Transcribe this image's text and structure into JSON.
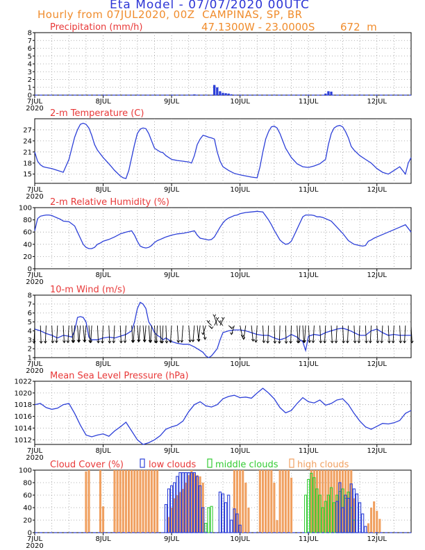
{
  "header": {
    "title": "Eta Model - 07/07/2020 00UTC",
    "subtitle": "Hourly from 07JUL2020, 00Z  CAMPINAS, SP, BR",
    "coords": "47.1300W - 23.0000S",
    "elevation": "672  m"
  },
  "x_axis": {
    "hours_total": 132,
    "day_ticks": [
      {
        "hour": 0,
        "label": "7JUL",
        "year": "2020"
      },
      {
        "hour": 24,
        "label": "8JUL"
      },
      {
        "hour": 48,
        "label": "9JUL"
      },
      {
        "hour": 72,
        "label": "10JUL"
      },
      {
        "hour": 96,
        "label": "11JUL"
      },
      {
        "hour": 120,
        "label": "12JUL"
      }
    ]
  },
  "legend": {
    "low": "low clouds",
    "mid": "middle clouds",
    "high": "high clouds"
  },
  "colors": {
    "line": "#2c3fd8",
    "title": "#e83838",
    "orange": "#f0a060",
    "green": "#33cc33",
    "blue": "#2c3fd8"
  },
  "chart_data": [
    {
      "type": "bar",
      "title": "Precipitation (mm/h)",
      "ylim": [
        0,
        8
      ],
      "yticks": [
        "0",
        "1",
        "2",
        "3",
        "4",
        "5",
        "6",
        "7",
        "8"
      ],
      "x": [
        56,
        63,
        64,
        65,
        66,
        67,
        68,
        69,
        102,
        103,
        104
      ],
      "values": [
        0.1,
        1.3,
        1.0,
        0.5,
        0.3,
        0.25,
        0.2,
        0.1,
        0.2,
        0.5,
        0.45
      ]
    },
    {
      "type": "line",
      "title": "2-m Temperature (C)",
      "ylim": [
        12.5,
        30
      ],
      "yticks": [
        "15",
        "18",
        "21",
        "24",
        "27"
      ],
      "x": [
        0,
        1,
        2,
        3,
        4,
        6,
        8,
        10,
        12,
        13,
        14,
        15,
        16,
        17,
        18,
        19,
        20,
        21,
        22,
        24,
        26,
        28,
        30,
        31,
        32,
        33,
        34,
        35,
        36,
        37,
        38,
        39,
        40,
        41,
        42,
        44,
        45,
        46,
        48,
        50,
        52,
        54,
        55,
        56,
        57,
        58,
        59,
        60,
        61,
        62,
        63,
        64,
        65,
        66,
        68,
        70,
        72,
        74,
        76,
        78,
        79,
        80,
        81,
        82,
        83,
        84,
        85,
        86,
        87,
        88,
        90,
        92,
        94,
        96,
        98,
        100,
        102,
        103,
        104,
        105,
        106,
        107,
        108,
        109,
        110,
        111,
        112,
        114,
        116,
        118,
        120,
        122,
        124,
        126,
        128,
        130,
        131,
        132
      ],
      "values": [
        21,
        18.5,
        17.5,
        17,
        16.8,
        16.5,
        16,
        15.5,
        19,
        22,
        25,
        27,
        28.5,
        28.8,
        28.5,
        27.5,
        25.5,
        23,
        21.5,
        19.5,
        17.8,
        16,
        14.5,
        14,
        13.8,
        16,
        19.5,
        23,
        26,
        27.2,
        27.5,
        27.3,
        26,
        24,
        22,
        21,
        20.8,
        20,
        19,
        18.7,
        18.5,
        18.3,
        18,
        20,
        23,
        24.5,
        25.5,
        25.3,
        25,
        24.8,
        24.5,
        21,
        18.5,
        17,
        16,
        15.2,
        14.8,
        14.5,
        14.2,
        14,
        17,
        21,
        24.5,
        26.5,
        27.8,
        28,
        27.5,
        26,
        24,
        22,
        19.5,
        17.8,
        17,
        16.8,
        17.2,
        17.8,
        19,
        23,
        26,
        27.5,
        28,
        28.2,
        27.8,
        26.5,
        24.8,
        22.5,
        21.5,
        20,
        19,
        18,
        16.5,
        15.5,
        15,
        16,
        17,
        15,
        18,
        19.5
      ]
    },
    {
      "type": "line",
      "title": "2-m Relative Humidity (%)",
      "ylim": [
        0,
        100
      ],
      "yticks": [
        "0",
        "20",
        "40",
        "60",
        "80",
        "100"
      ],
      "x": [
        0,
        1,
        2,
        3,
        4,
        5,
        6,
        7,
        8,
        9,
        10,
        12,
        14,
        15,
        16,
        17,
        18,
        19,
        20,
        21,
        22,
        23,
        24,
        26,
        28,
        30,
        32,
        34,
        35,
        36,
        37,
        38,
        39,
        40,
        41,
        42,
        43,
        44,
        45,
        46,
        48,
        50,
        52,
        54,
        56,
        57,
        58,
        59,
        60,
        61,
        62,
        63,
        64,
        65,
        66,
        67,
        68,
        69,
        70,
        71,
        72,
        74,
        76,
        78,
        80,
        82,
        83,
        84,
        85,
        86,
        87,
        88,
        89,
        90,
        91,
        92,
        93,
        94,
        95,
        96,
        97,
        98,
        99,
        100,
        101,
        102,
        104,
        106,
        108,
        110,
        112,
        114,
        115,
        116,
        117,
        118,
        119,
        120,
        122,
        124,
        126,
        128,
        130,
        132
      ],
      "values": [
        62,
        82,
        86,
        87,
        88,
        88,
        87,
        85,
        83,
        81,
        78,
        77,
        70,
        60,
        50,
        40,
        35,
        33,
        33,
        35,
        40,
        42,
        45,
        48,
        52,
        57,
        60,
        62,
        55,
        45,
        37,
        35,
        34,
        35,
        38,
        43,
        46,
        48,
        50,
        52,
        55,
        57,
        58,
        60,
        62,
        55,
        50,
        49,
        48,
        47,
        48,
        52,
        60,
        68,
        75,
        80,
        83,
        85,
        87,
        88,
        90,
        92,
        93,
        94,
        93,
        80,
        72,
        63,
        55,
        47,
        43,
        40,
        41,
        45,
        55,
        65,
        75,
        85,
        88,
        88,
        88,
        87,
        85,
        85,
        84,
        82,
        78,
        68,
        58,
        46,
        40,
        38,
        37,
        38,
        45,
        47,
        50,
        52,
        56,
        60,
        64,
        68,
        72,
        60
      ]
    },
    {
      "type": "line",
      "title": "10-m Wind (m/s)",
      "ylim": [
        1,
        8
      ],
      "yticks": [
        "1",
        "2",
        "3",
        "4",
        "5",
        "6",
        "7",
        "8"
      ],
      "x": [
        0,
        2,
        4,
        6,
        8,
        10,
        12,
        13,
        14,
        15,
        16,
        17,
        18,
        19,
        20,
        22,
        24,
        26,
        28,
        30,
        32,
        34,
        35,
        36,
        37,
        38,
        39,
        40,
        41,
        42,
        43,
        44,
        45,
        46,
        48,
        50,
        52,
        54,
        56,
        57,
        58,
        59,
        60,
        61,
        62,
        63,
        64,
        65,
        66,
        68,
        70,
        72,
        74,
        76,
        78,
        80,
        82,
        84,
        86,
        88,
        90,
        92,
        93,
        94,
        95,
        96,
        98,
        100,
        102,
        104,
        106,
        108,
        110,
        112,
        114,
        116,
        118,
        120,
        122,
        124,
        126,
        128,
        130,
        132
      ],
      "values": [
        4.2,
        4.0,
        3.7,
        3.5,
        3.2,
        3.5,
        3.4,
        3.3,
        4.0,
        5.5,
        5.6,
        5.5,
        5.0,
        3.3,
        3.0,
        3.0,
        3.2,
        3.3,
        3.2,
        3.4,
        3.6,
        4.0,
        5.0,
        6.5,
        7.2,
        7.0,
        6.5,
        5.0,
        4.5,
        3.8,
        3.5,
        3.3,
        3.0,
        3.2,
        2.8,
        2.6,
        2.5,
        2.5,
        2.2,
        2.0,
        1.8,
        1.6,
        1.2,
        1.0,
        1.2,
        1.6,
        2.0,
        3.0,
        3.8,
        4.0,
        4.1,
        4.1,
        4.0,
        3.8,
        3.6,
        3.5,
        3.5,
        3.2,
        3.0,
        3.2,
        3.6,
        3.3,
        3.0,
        2.8,
        1.8,
        3.4,
        3.6,
        3.5,
        3.8,
        4.0,
        4.2,
        4.3,
        4.1,
        3.8,
        3.5,
        3.5,
        4.0,
        4.2,
        3.8,
        3.5,
        3.6,
        3.5,
        3.5,
        3.5
      ],
      "barb_directions_deg": [
        12,
        12,
        14,
        16,
        18,
        18,
        18,
        20,
        20,
        22,
        24,
        24,
        24,
        20,
        18,
        16,
        14,
        14,
        16,
        16,
        18,
        20,
        22,
        24,
        26,
        26,
        24,
        22,
        20,
        18,
        16,
        16,
        14,
        14,
        20,
        20,
        22,
        24,
        26,
        28,
        30,
        40,
        60,
        80,
        100,
        110,
        120,
        110,
        100,
        80,
        60,
        50,
        40,
        30,
        22,
        18,
        14,
        12,
        10,
        10,
        12,
        16,
        18,
        20,
        20,
        20,
        18,
        16,
        16,
        16,
        16,
        16,
        16,
        16,
        16,
        16,
        16,
        16,
        16,
        16,
        16,
        16,
        16,
        16
      ]
    },
    {
      "type": "line",
      "title": "Mean Sea Level Pressure (hPa)",
      "ylim": [
        1011.2,
        1022
      ],
      "yticks": [
        "1012",
        "1014",
        "1016",
        "1018",
        "1020",
        "1022"
      ],
      "x": [
        0,
        2,
        4,
        6,
        8,
        10,
        12,
        14,
        16,
        18,
        20,
        22,
        24,
        26,
        28,
        30,
        32,
        34,
        36,
        38,
        40,
        42,
        44,
        46,
        48,
        50,
        52,
        54,
        56,
        58,
        60,
        62,
        64,
        66,
        68,
        70,
        72,
        74,
        76,
        78,
        80,
        82,
        84,
        86,
        88,
        90,
        92,
        94,
        96,
        98,
        100,
        102,
        104,
        106,
        108,
        110,
        112,
        114,
        116,
        118,
        120,
        122,
        124,
        126,
        128,
        130,
        132
      ],
      "values": [
        1018,
        1018.2,
        1017.5,
        1017.2,
        1017.4,
        1018,
        1018.2,
        1016.5,
        1014.5,
        1012.8,
        1012.5,
        1012.8,
        1013,
        1012.6,
        1013.5,
        1014.2,
        1015,
        1013.5,
        1012,
        1011.2,
        1011.5,
        1012,
        1012.7,
        1013.8,
        1014.2,
        1014.5,
        1015.2,
        1016.8,
        1018,
        1018.5,
        1017.8,
        1017.6,
        1018,
        1019,
        1019.4,
        1019.6,
        1019.2,
        1019.3,
        1019.1,
        1020,
        1020.8,
        1020,
        1019,
        1017.5,
        1016.6,
        1017,
        1018.2,
        1019.2,
        1018.5,
        1018.3,
        1018.8,
        1017.9,
        1018.2,
        1018.8,
        1019,
        1018,
        1016.5,
        1015.2,
        1014.2,
        1013.8,
        1014.3,
        1014.8,
        1014.7,
        1014.9,
        1015.3,
        1016.5,
        1017
      ]
    },
    {
      "type": "bar",
      "title": "Cloud Cover (%)",
      "ylim": [
        0,
        100
      ],
      "yticks": [
        "0",
        "20",
        "40",
        "60",
        "80",
        "100"
      ],
      "series": [
        {
          "name": "high clouds",
          "x": [
            18,
            19,
            23,
            24,
            28,
            29,
            30,
            31,
            32,
            33,
            34,
            35,
            36,
            37,
            38,
            39,
            40,
            41,
            42,
            43,
            47,
            48,
            49,
            50,
            51,
            52,
            53,
            54,
            55,
            56,
            57,
            58,
            59,
            70,
            71,
            72,
            73,
            74,
            75,
            79,
            80,
            81,
            82,
            83,
            84,
            85,
            86,
            87,
            88,
            89,
            90,
            97,
            98,
            99,
            100,
            101,
            102,
            103,
            104,
            105,
            106,
            107,
            108,
            109,
            110,
            111,
            112,
            117,
            118,
            119,
            120,
            121
          ],
          "values": [
            98,
            100,
            100,
            42,
            100,
            100,
            100,
            100,
            100,
            100,
            100,
            100,
            100,
            100,
            100,
            100,
            100,
            100,
            100,
            100,
            25,
            40,
            55,
            60,
            65,
            70,
            80,
            92,
            100,
            95,
            92,
            90,
            80,
            100,
            100,
            100,
            100,
            80,
            40,
            100,
            100,
            100,
            100,
            100,
            80,
            20,
            100,
            100,
            100,
            100,
            88,
            100,
            100,
            100,
            100,
            100,
            100,
            100,
            100,
            100,
            100,
            100,
            100,
            100,
            100,
            100,
            55,
            15,
            40,
            50,
            35,
            22
          ]
        },
        {
          "name": "middle clouds",
          "x": [
            60,
            61,
            62,
            95,
            96,
            97,
            98,
            99,
            100,
            101,
            102,
            103,
            104,
            105,
            106,
            107,
            108,
            109,
            110,
            111,
            112
          ],
          "values": [
            15,
            40,
            42,
            60,
            85,
            95,
            88,
            70,
            60,
            40,
            50,
            60,
            72,
            48,
            60,
            66,
            70,
            55,
            65,
            40,
            20
          ]
        },
        {
          "name": "low clouds",
          "x": [
            46,
            47,
            48,
            49,
            50,
            51,
            52,
            53,
            54,
            55,
            56,
            57,
            58,
            59,
            65,
            66,
            67,
            68,
            69,
            70,
            71,
            72,
            106,
            107,
            108,
            109,
            110,
            111,
            112,
            113,
            114,
            115,
            116
          ],
          "values": [
            45,
            70,
            75,
            80,
            90,
            96,
            96,
            96,
            96,
            96,
            96,
            90,
            75,
            40,
            65,
            62,
            48,
            60,
            20,
            38,
            30,
            12,
            50,
            80,
            40,
            60,
            55,
            78,
            70,
            62,
            48,
            30,
            10
          ]
        }
      ]
    }
  ]
}
